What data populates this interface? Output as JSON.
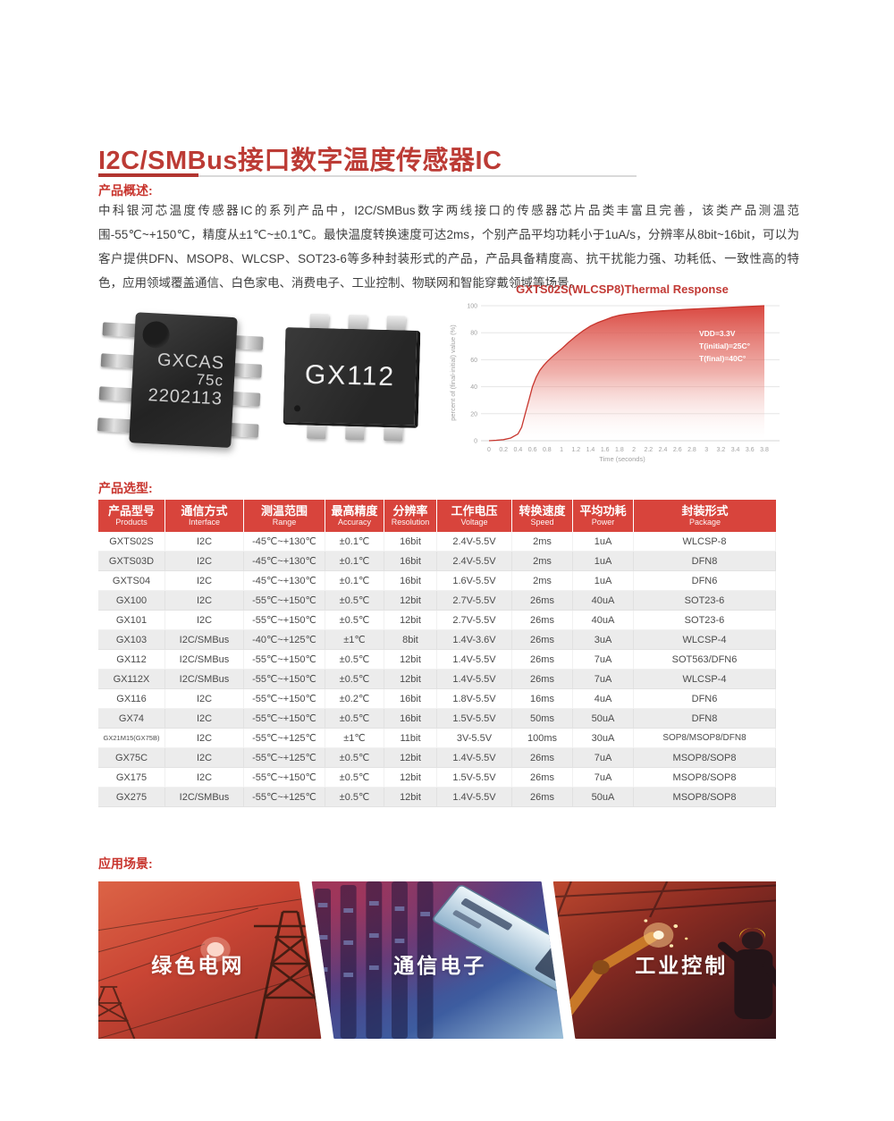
{
  "header": {
    "title": "I2C/SMBus接口数字温度传感器IC"
  },
  "overview": {
    "label": "产品概述:",
    "text": "中科银河芯温度传感器IC的系列产品中，I2C/SMBus数字两线接口的传感器芯片品类丰富且完善，该类产品测温范围-55℃~+150℃，精度从±1℃~±0.1℃。最快温度转换速度可达2ms，个别产品平均功耗小于1uA/s，分辨率从8bit~16bit，可以为客户提供DFN、MSOP8、WLCSP、SOT23-6等多种封装形式的产品，产品具备精度高、抗干扰能力强、功耗低、一致性高的特色，应用领域覆盖通信、白色家电、消费电子、工业控制、物联网和智能穿戴领域等场景。"
  },
  "chips": {
    "sop8": {
      "line1": "GXCAS",
      "line2": "75c",
      "line3": "2202113"
    },
    "sot": {
      "label": "GX112"
    }
  },
  "chart_data": {
    "type": "area",
    "title": "GXTS02S(WLCSP8)Thermal Response",
    "xlabel": "Time (seconds)",
    "ylabel": "percent of (final-initial) value (%)",
    "x_range": [
      0,
      3.8
    ],
    "y_range": [
      0,
      100
    ],
    "x_ticks": [
      "0",
      "0.2",
      "0.4",
      "0.6",
      "0.8",
      "1",
      "1.2",
      "1.4",
      "1.6",
      "1.8",
      "2",
      "2.2",
      "2.4",
      "2.6",
      "2.8",
      "3",
      "3.2",
      "3.4",
      "3.6",
      "3.8"
    ],
    "y_ticks": [
      0,
      20,
      40,
      60,
      80,
      100
    ],
    "grid": "horizontal",
    "legend": "none",
    "annotations": [
      "VDD=3.3V",
      "T(initial)=25C°",
      "T(final)=40C°"
    ],
    "series": [
      {
        "name": "thermal_response",
        "x": [
          0,
          0.1,
          0.2,
          0.3,
          0.4,
          0.45,
          0.5,
          0.55,
          0.6,
          0.65,
          0.7,
          0.75,
          0.8,
          0.9,
          1.0,
          1.1,
          1.2,
          1.3,
          1.4,
          1.5,
          1.6,
          1.7,
          1.8,
          1.9,
          2.0,
          2.2,
          2.4,
          2.6,
          2.8,
          3.0,
          3.2,
          3.4,
          3.6,
          3.8
        ],
        "y": [
          0,
          0.3,
          0.8,
          2,
          5,
          10,
          20,
          30,
          40,
          47,
          52,
          55.5,
          58.5,
          63.5,
          68,
          73,
          77.5,
          81.5,
          85,
          87.5,
          89.5,
          91.5,
          93,
          93.8,
          94.4,
          95.4,
          96.2,
          96.9,
          97.5,
          98,
          98.5,
          99,
          99.5,
          100
        ]
      }
    ]
  },
  "selection": {
    "label": "产品选型:",
    "columns": [
      {
        "zh": "产品型号",
        "en": "Products"
      },
      {
        "zh": "通信方式",
        "en": "Interface"
      },
      {
        "zh": "测温范围",
        "en": "Range"
      },
      {
        "zh": "最高精度",
        "en": "Accuracy"
      },
      {
        "zh": "分辨率",
        "en": "Resolution"
      },
      {
        "zh": "工作电压",
        "en": "Voltage"
      },
      {
        "zh": "转换速度",
        "en": "Speed"
      },
      {
        "zh": "平均功耗",
        "en": "Power"
      },
      {
        "zh": "封装形式",
        "en": "Package"
      }
    ],
    "rows": [
      [
        "GXTS02S",
        "I2C",
        "-45℃~+130℃",
        "±0.1℃",
        "16bit",
        "2.4V-5.5V",
        "2ms",
        "1uA",
        "WLCSP-8"
      ],
      [
        "GXTS03D",
        "I2C",
        "-45℃~+130℃",
        "±0.1℃",
        "16bit",
        "2.4V-5.5V",
        "2ms",
        "1uA",
        "DFN8"
      ],
      [
        "GXTS04",
        "I2C",
        "-45℃~+130℃",
        "±0.1℃",
        "16bit",
        "1.6V-5.5V",
        "2ms",
        "1uA",
        "DFN6"
      ],
      [
        "GX100",
        "I2C",
        "-55℃~+150℃",
        "±0.5℃",
        "12bit",
        "2.7V-5.5V",
        "26ms",
        "40uA",
        "SOT23-6"
      ],
      [
        "GX101",
        "I2C",
        "-55℃~+150℃",
        "±0.5℃",
        "12bit",
        "2.7V-5.5V",
        "26ms",
        "40uA",
        "SOT23-6"
      ],
      [
        "GX103",
        "I2C/SMBus",
        "-40℃~+125℃",
        "±1℃",
        "8bit",
        "1.4V-3.6V",
        "26ms",
        "3uA",
        "WLCSP-4"
      ],
      [
        "GX112",
        "I2C/SMBus",
        "-55℃~+150℃",
        "±0.5℃",
        "12bit",
        "1.4V-5.5V",
        "26ms",
        "7uA",
        "SOT563/DFN6"
      ],
      [
        "GX112X",
        "I2C/SMBus",
        "-55℃~+150℃",
        "±0.5℃",
        "12bit",
        "1.4V-5.5V",
        "26ms",
        "7uA",
        "WLCSP-4"
      ],
      [
        "GX116",
        "I2C",
        "-55℃~+150℃",
        "±0.2℃",
        "16bit",
        "1.8V-5.5V",
        "16ms",
        "4uA",
        "DFN6"
      ],
      [
        "GX74",
        "I2C",
        "-55℃~+150℃",
        "±0.5℃",
        "16bit",
        "1.5V-5.5V",
        "50ms",
        "50uA",
        "DFN8"
      ],
      [
        "GX21M15(GX75B)",
        "I2C",
        "-55℃~+125℃",
        "±1℃",
        "11bit",
        "3V-5.5V",
        "100ms",
        "30uA",
        "SOP8/MSOP8/DFN8"
      ],
      [
        "GX75C",
        "I2C",
        "-55℃~+125℃",
        "±0.5℃",
        "12bit",
        "1.4V-5.5V",
        "26ms",
        "7uA",
        "MSOP8/SOP8"
      ],
      [
        "GX175",
        "I2C",
        "-55℃~+150℃",
        "±0.5℃",
        "12bit",
        "1.5V-5.5V",
        "26ms",
        "7uA",
        "MSOP8/SOP8"
      ],
      [
        "GX275",
        "I2C/SMBus",
        "-55℃~+125℃",
        "±0.5℃",
        "12bit",
        "1.4V-5.5V",
        "26ms",
        "50uA",
        "MSOP8/SOP8"
      ]
    ]
  },
  "applications": {
    "label": "应用场景:",
    "cards": [
      {
        "label": "绿色电网"
      },
      {
        "label": "通信电子"
      },
      {
        "label": "工业控制"
      }
    ]
  },
  "colors": {
    "accent_red": "#c23a35",
    "table_header_red": "#d8443c",
    "chart_red": "#d84038",
    "alt_row_gray": "#ececec"
  }
}
